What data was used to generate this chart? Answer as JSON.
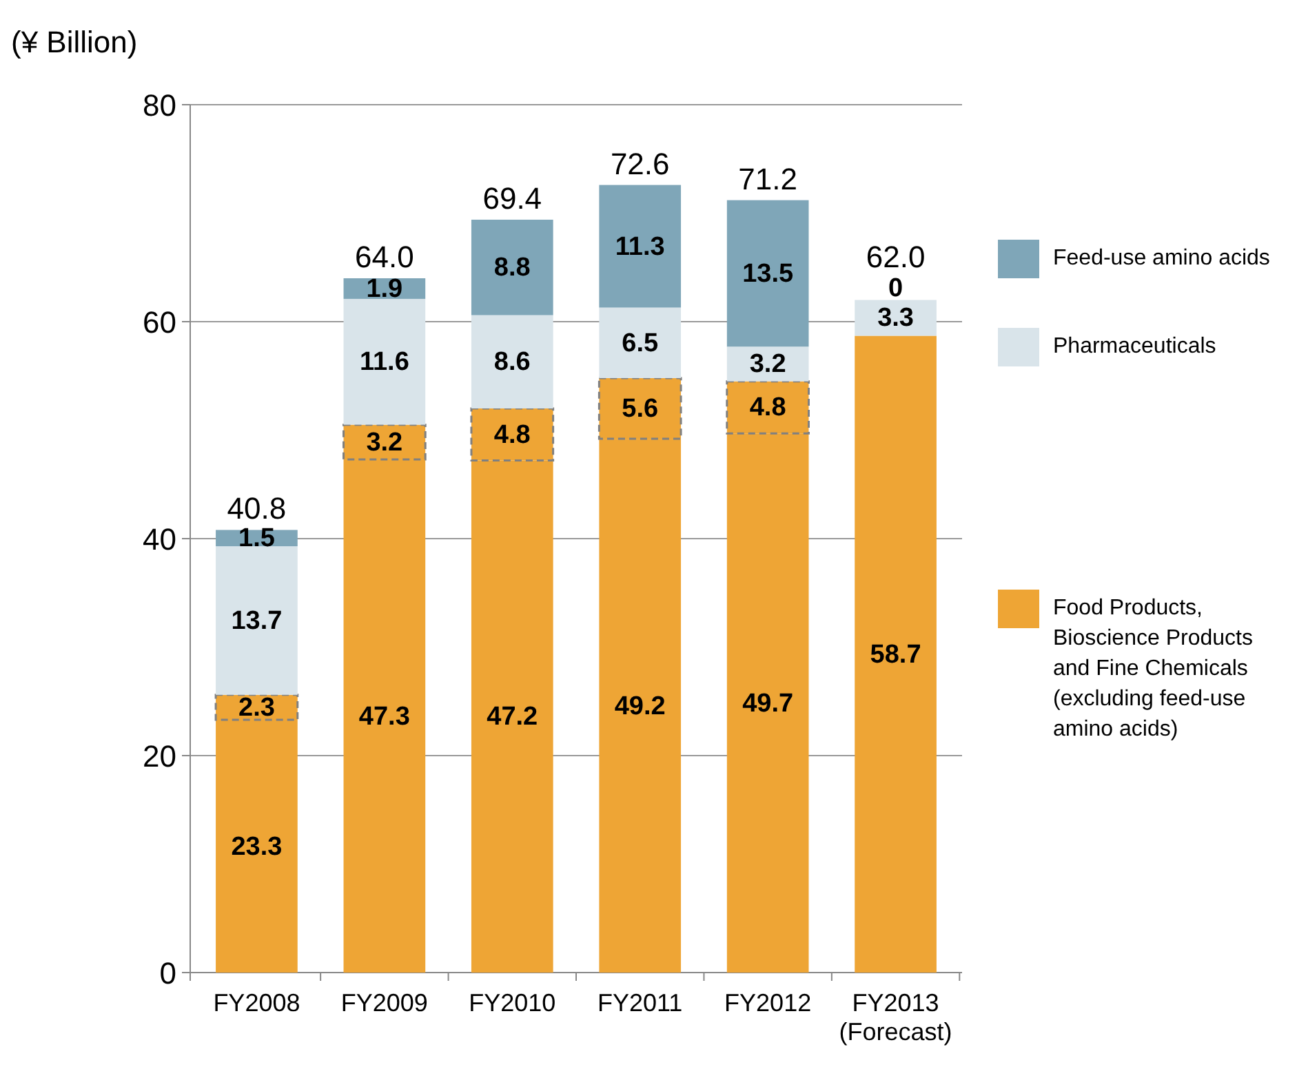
{
  "chart_data": {
    "type": "bar",
    "stacked": true,
    "ylabel": "(¥ Billion)",
    "categories": [
      "FY2008",
      "FY2009",
      "FY2010",
      "FY2011",
      "FY2012",
      "FY2013\n(Forecast)"
    ],
    "series": [
      {
        "name": "Food Products, Bioscience Products and Fine Chemicals (excluding feed-use amino acids)",
        "color": "#eea535",
        "values": [
          23.3,
          47.3,
          47.2,
          49.2,
          49.7,
          58.7
        ]
      },
      {
        "color": "#eea535",
        "line_style": "dashed",
        "values": [
          2.3,
          3.2,
          4.8,
          5.6,
          4.8,
          null
        ]
      },
      {
        "name": "Pharmaceuticals",
        "color": "#d9e4ea",
        "values": [
          13.7,
          11.6,
          8.6,
          6.5,
          3.2,
          3.3
        ]
      },
      {
        "name": "Feed-use amino acids",
        "color": "#7fa6b8",
        "values": [
          1.5,
          1.9,
          8.8,
          11.3,
          13.5,
          0
        ]
      }
    ],
    "totals": [
      "40.8",
      "64.0",
      "69.4",
      "72.6",
      "71.2",
      "62.0"
    ],
    "data_labels": true,
    "ylim": [
      0,
      80
    ],
    "yticks": [
      0,
      20,
      40,
      60,
      80
    ],
    "grid": "y",
    "legend": "right"
  }
}
